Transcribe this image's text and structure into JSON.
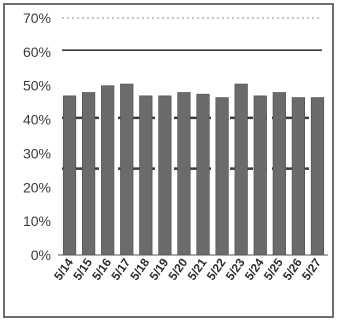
{
  "chart_data": {
    "type": "bar",
    "categories": [
      "5/14",
      "5/15",
      "5/16",
      "5/17",
      "5/18",
      "5/19",
      "5/20",
      "5/21",
      "5/22",
      "5/23",
      "5/24",
      "5/25",
      "5/26",
      "5/27"
    ],
    "values": [
      47,
      48,
      50,
      50.5,
      47,
      47,
      48,
      47.5,
      46.5,
      50.5,
      47,
      48,
      46.5,
      46.5
    ],
    "y_tick_labels": [
      "0%",
      "10%",
      "20%",
      "30%",
      "40%",
      "50%",
      "60%",
      "70%"
    ],
    "ylim": [
      0,
      70
    ],
    "grid": false,
    "legend": "none",
    "reference_lines": [
      {
        "y": 25.5,
        "style": "dashed"
      },
      {
        "y": 40.5,
        "style": "dashed"
      },
      {
        "y": 60.5,
        "style": "solid"
      },
      {
        "y": 70,
        "style": "dotted"
      }
    ],
    "colors": {
      "bar": "#6b6b6b",
      "bar_edge": "#4a4a4a",
      "line": "#3c3c3c",
      "axis": "#555555"
    }
  }
}
